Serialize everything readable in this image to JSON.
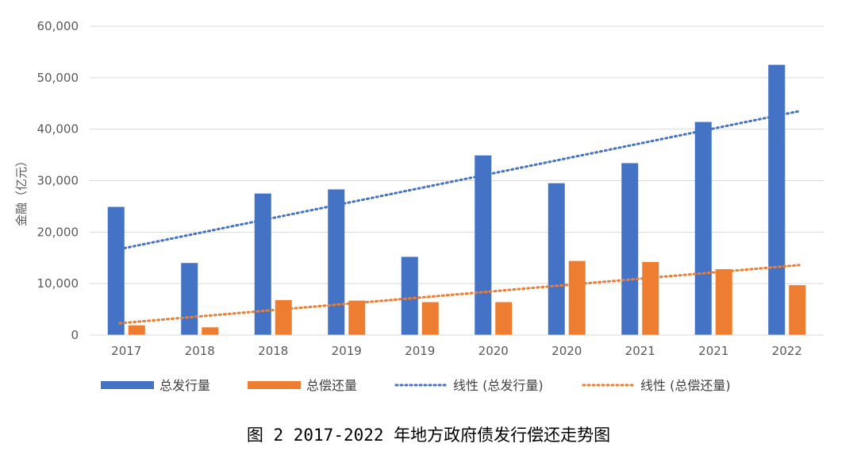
{
  "chart_data": {
    "type": "bar",
    "title": "",
    "xlabel": "",
    "ylabel": "金融（亿元）",
    "ylim": [
      0,
      60000
    ],
    "yticks": [
      0,
      10000,
      20000,
      30000,
      40000,
      50000,
      60000
    ],
    "ytick_labels": [
      "0",
      "10,000",
      "20,000",
      "30,000",
      "40,000",
      "50,000",
      "60,000"
    ],
    "grid": true,
    "legend_position": "bottom",
    "categories": [
      "2017",
      "2018",
      "2018",
      "2019",
      "2019",
      "2020",
      "2020",
      "2021",
      "2021",
      "2022"
    ],
    "series": [
      {
        "name": "总发行量",
        "color": "#4472C4",
        "values": [
          24900,
          14000,
          27500,
          28300,
          15200,
          34900,
          29500,
          33400,
          41400,
          52500
        ]
      },
      {
        "name": "总偿还量",
        "color": "#ED7D31",
        "values": [
          1900,
          1500,
          6800,
          6700,
          6400,
          6400,
          14400,
          14200,
          12800,
          9700
        ]
      }
    ],
    "trendlines": [
      {
        "name": "线性 (总发行量)",
        "color": "#4472C4",
        "start": 16700,
        "end": 43500
      },
      {
        "name": "线性 (总偿还量)",
        "color": "#ED7D31",
        "start": 2300,
        "end": 13600
      }
    ]
  },
  "caption": "图 2 2017-2022 年地方政府债发行偿还走势图"
}
